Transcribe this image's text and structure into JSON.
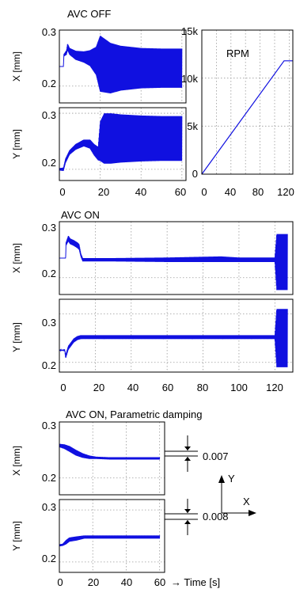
{
  "chart_data": [
    {
      "type": "line",
      "title": "AVC OFF",
      "panels": [
        {
          "ylabel": "X [mm]",
          "ylim": [
            0.17,
            0.3
          ],
          "yticks": [
            "0.2",
            "0.3"
          ],
          "xlim": [
            0,
            62
          ],
          "xticks": [
            "0",
            "20",
            "40",
            "60"
          ],
          "series": [
            {
              "x": [
                0,
                2,
                2.2,
                3.5,
                4,
                5,
                8,
                12,
                15,
                18,
                20,
                25,
                30,
                40,
                50,
                60
              ],
              "y": [
                0.235,
                0.235,
                0.255,
                0.26,
                0.27,
                0.262,
                0.255,
                0.252,
                0.25,
                0.245,
                0.24,
                0.232,
                0.232,
                0.232,
                0.232,
                0.232
              ],
              "amp": [
                0,
                0,
                0.002,
                0.004,
                0.006,
                0.006,
                0.008,
                0.01,
                0.014,
                0.025,
                0.05,
                0.045,
                0.04,
                0.036,
                0.035,
                0.035
              ]
            }
          ]
        },
        {
          "ylabel": "Y [mm]",
          "ylim": [
            0.18,
            0.31
          ],
          "yticks": [
            "0.2",
            "0.3"
          ],
          "xlim": [
            0,
            62
          ],
          "xticks": [
            "0",
            "20",
            "40",
            "60"
          ],
          "series": [
            {
              "x": [
                0,
                2,
                3,
                5,
                8,
                12,
                15,
                17,
                19,
                20,
                22,
                25,
                30,
                40,
                50,
                60
              ],
              "y": [
                0.2,
                0.2,
                0.215,
                0.23,
                0.24,
                0.247,
                0.245,
                0.235,
                0.228,
                0.25,
                0.255,
                0.255,
                0.255,
                0.255,
                0.255,
                0.255
              ],
              "amp": [
                0.002,
                0.003,
                0.004,
                0.004,
                0.005,
                0.006,
                0.008,
                0.01,
                0.012,
                0.035,
                0.045,
                0.045,
                0.043,
                0.041,
                0.04,
                0.04
              ]
            }
          ]
        }
      ]
    },
    {
      "type": "line",
      "title": "RPM",
      "ylim": [
        0,
        15000
      ],
      "yticks": [
        "0",
        "5k",
        "10k",
        "15k"
      ],
      "xlim": [
        0,
        125
      ],
      "xticks": [
        "0",
        "40",
        "80",
        "120"
      ],
      "series": [
        {
          "x": [
            0,
            113,
            125
          ],
          "y": [
            0,
            11800,
            11800
          ]
        }
      ]
    },
    {
      "type": "line",
      "title": "AVC ON",
      "panels": [
        {
          "ylabel": "X [mm]",
          "ylim": [
            0.17,
            0.3
          ],
          "yticks": [
            "0.2",
            "0.3"
          ],
          "xlim": [
            0,
            130
          ],
          "xticks": [
            "0",
            "20",
            "40",
            "60",
            "80",
            "100",
            "120"
          ],
          "series": [
            {
              "x": [
                0,
                3.5,
                3.7,
                5,
                6,
                8,
                10,
                11,
                12,
                13,
                15,
                20,
                30,
                60,
                90,
                100,
                110,
                120,
                121,
                127
              ],
              "y": [
                0.235,
                0.235,
                0.26,
                0.27,
                0.265,
                0.262,
                0.258,
                0.255,
                0.24,
                0.232,
                0.232,
                0.232,
                0.232,
                0.232,
                0.233,
                0.232,
                0.232,
                0.232,
                0.228,
                0.228
              ],
              "amp": [
                0,
                0,
                0.003,
                0.005,
                0.005,
                0.005,
                0.005,
                0.005,
                0.003,
                0.003,
                0.003,
                0.003,
                0.003,
                0.004,
                0.005,
                0.004,
                0.004,
                0.004,
                0.05,
                0.05
              ]
            }
          ]
        },
        {
          "ylabel": "Y [mm]",
          "ylim": [
            0.18,
            0.33
          ],
          "yticks": [
            "0.2",
            "0.3"
          ],
          "xlim": [
            0,
            130
          ],
          "xticks": [
            "0",
            "20",
            "40",
            "60",
            "80",
            "100",
            "120"
          ],
          "series": [
            {
              "x": [
                0,
                3,
                3.5,
                5,
                8,
                10,
                12,
                15,
                20,
                40,
                60,
                80,
                100,
                120,
                121,
                127
              ],
              "y": [
                0.225,
                0.225,
                0.212,
                0.23,
                0.245,
                0.25,
                0.252,
                0.252,
                0.252,
                0.252,
                0.252,
                0.252,
                0.252,
                0.252,
                0.25,
                0.25
              ],
              "amp": [
                0,
                0.002,
                0.004,
                0.004,
                0.004,
                0.004,
                0.004,
                0.004,
                0.004,
                0.004,
                0.004,
                0.004,
                0.004,
                0.004,
                0.06,
                0.06
              ]
            }
          ]
        }
      ]
    },
    {
      "type": "line",
      "title": "AVC ON, Parametric damping",
      "panels": [
        {
          "ylabel": "X [mm]",
          "ylim": [
            0.17,
            0.3
          ],
          "yticks": [
            "0.2",
            "0.3"
          ],
          "xlim": [
            0,
            63
          ],
          "xticks": [
            "0",
            "20",
            "40",
            "60"
          ],
          "series": [
            {
              "x": [
                0,
                3,
                6,
                10,
                14,
                18,
                22,
                30,
                40,
                50,
                60
              ],
              "y": [
                0.258,
                0.256,
                0.252,
                0.245,
                0.24,
                0.237,
                0.236,
                0.235,
                0.235,
                0.235,
                0.235
              ],
              "amp": [
                0.003,
                0.004,
                0.005,
                0.005,
                0.004,
                0.003,
                0.002,
                0.002,
                0.002,
                0.002,
                0.002
              ]
            }
          ],
          "annotation": "0.007"
        },
        {
          "ylabel": "Y [mm]",
          "ylim": [
            0.18,
            0.32
          ],
          "yticks": [
            "0.2",
            "0.3"
          ],
          "xlim": [
            0,
            63
          ],
          "xticks": [
            "0",
            "20",
            "40",
            "60"
          ],
          "series": [
            {
              "x": [
                0,
                2,
                4,
                6,
                10,
                15,
                20,
                30,
                40,
                50,
                60
              ],
              "y": [
                0.232,
                0.233,
                0.238,
                0.243,
                0.245,
                0.248,
                0.248,
                0.248,
                0.248,
                0.248,
                0.248
              ],
              "amp": [
                0.002,
                0.002,
                0.004,
                0.004,
                0.004,
                0.003,
                0.003,
                0.003,
                0.003,
                0.003,
                0.003
              ]
            }
          ],
          "annotation": "0.008"
        }
      ]
    }
  ],
  "axes_legend": {
    "y": "Y",
    "x": "X"
  },
  "time_label": "→ Time [s]",
  "colors": {
    "signal": "#1010e0",
    "grid": "#9a9a9a"
  }
}
